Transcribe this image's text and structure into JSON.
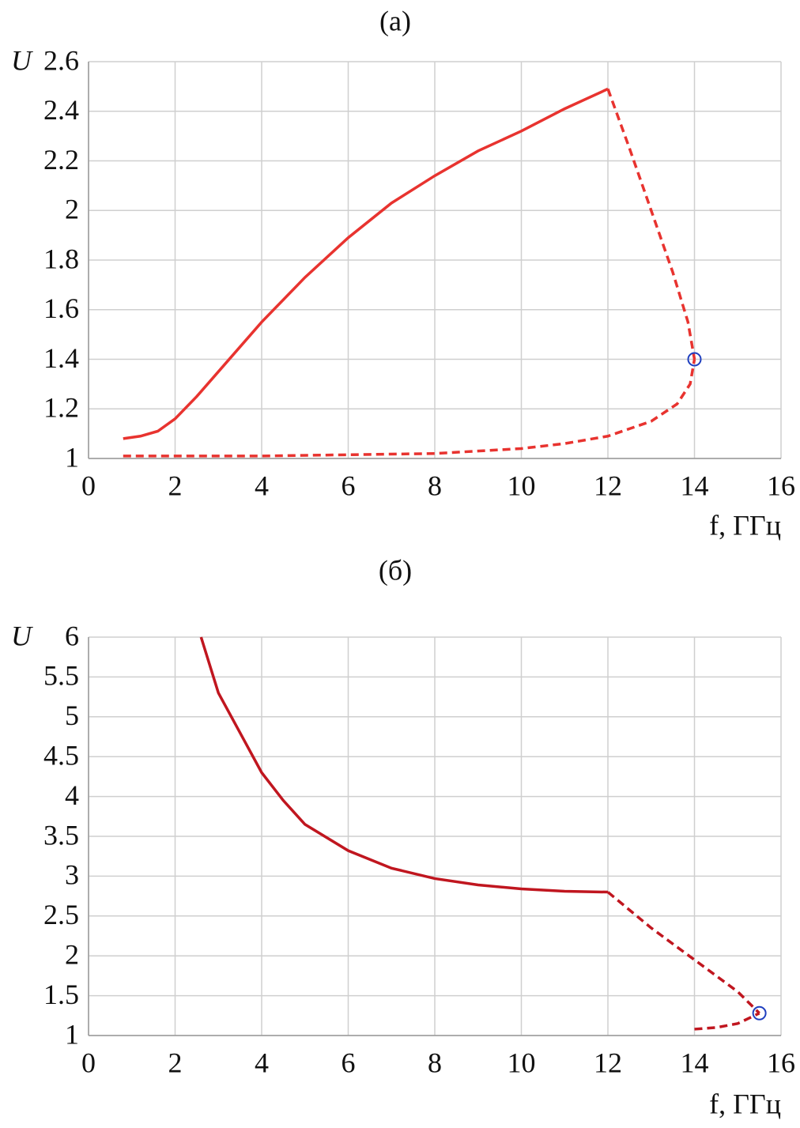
{
  "chart_data": [
    {
      "type": "line",
      "title": "(а)",
      "ylabel": "U",
      "xlabel": "f, ГГц",
      "xlim": [
        0,
        16
      ],
      "ylim": [
        1,
        2.6
      ],
      "xticks": [
        0,
        2,
        4,
        6,
        8,
        10,
        12,
        14,
        16
      ],
      "yticks": [
        1,
        1.2,
        1.4,
        1.6,
        1.8,
        2,
        2.2,
        2.4,
        2.6
      ],
      "grid": true,
      "series": [
        {
          "color": "#e8332f",
          "dashed": false,
          "x": [
            0.8,
            1.2,
            1.6,
            2,
            2.5,
            3,
            3.5,
            4,
            5,
            6,
            7,
            8,
            9,
            10,
            11,
            12
          ],
          "values": [
            1.08,
            1.09,
            1.11,
            1.16,
            1.25,
            1.35,
            1.45,
            1.55,
            1.73,
            1.89,
            2.03,
            2.14,
            2.24,
            2.32,
            2.41,
            2.49
          ]
        },
        {
          "color": "#e8332f",
          "dashed": true,
          "x": [
            12,
            12.5,
            13,
            13.5,
            13.85,
            14
          ],
          "values": [
            2.49,
            2.25,
            2.0,
            1.75,
            1.55,
            1.4
          ]
        },
        {
          "color": "#e8332f",
          "dashed": true,
          "x": [
            0.8,
            2,
            4,
            6,
            8,
            10,
            11,
            12,
            13,
            13.6,
            13.9,
            14
          ],
          "values": [
            1.01,
            1.01,
            1.01,
            1.015,
            1.02,
            1.04,
            1.06,
            1.09,
            1.15,
            1.22,
            1.3,
            1.4
          ]
        }
      ],
      "points": [
        {
          "x": 14,
          "y": 1.4
        }
      ],
      "point_color": "#1f3fbf"
    },
    {
      "type": "line",
      "title": "(б)",
      "ylabel": "U",
      "xlabel": "f, ГГц",
      "xlim": [
        0,
        16
      ],
      "ylim": [
        1,
        6
      ],
      "xticks": [
        0,
        2,
        4,
        6,
        8,
        10,
        12,
        14,
        16
      ],
      "yticks": [
        1,
        1.5,
        2,
        2.5,
        3,
        3.5,
        4,
        4.5,
        5,
        5.5,
        6
      ],
      "grid": true,
      "series": [
        {
          "color": "#c0161f",
          "dashed": false,
          "x": [
            2.6,
            3,
            3.5,
            4,
            4.5,
            5,
            6,
            7,
            8,
            9,
            10,
            11,
            12
          ],
          "values": [
            6,
            5.3,
            4.8,
            4.3,
            3.95,
            3.65,
            3.32,
            3.1,
            2.97,
            2.89,
            2.84,
            2.81,
            2.8
          ]
        },
        {
          "color": "#c0161f",
          "dashed": true,
          "x": [
            12,
            13,
            14,
            15,
            15.5
          ],
          "values": [
            2.8,
            2.35,
            1.95,
            1.55,
            1.28
          ]
        },
        {
          "color": "#c0161f",
          "dashed": true,
          "x": [
            14,
            14.5,
            15,
            15.5
          ],
          "values": [
            1.08,
            1.1,
            1.15,
            1.28
          ]
        }
      ],
      "points": [
        {
          "x": 15.5,
          "y": 1.28
        }
      ],
      "point_color": "#1f3fbf"
    }
  ]
}
